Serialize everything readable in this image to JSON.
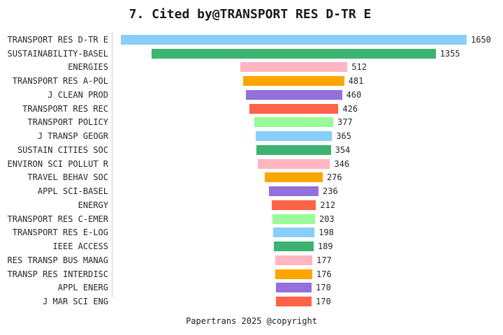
{
  "title": "7. Cited by@TRANSPORT RES D-TR E",
  "footer": "Papertrans 2025 @copyright",
  "colors": {
    "background": "#ffffff",
    "axis_line": "#cccccc",
    "text": "#262626",
    "title_text": "#1a1a1a",
    "palette": [
      "#87CEFA",
      "#3CB371",
      "#FFB6C1",
      "#FFA500",
      "#9370DB",
      "#FF6347",
      "#98FB98"
    ]
  },
  "chart_data": {
    "type": "bar",
    "orientation": "horizontal",
    "style": "centered-funnel",
    "title": "7. Cited by@TRANSPORT RES D-TR E",
    "xlabel": "",
    "ylabel": "",
    "legend": "none",
    "grid": false,
    "value_labels": "right-of-bar",
    "max_value": 1650,
    "categories": [
      "TRANSPORT RES D-TR E",
      "SUSTAINABILITY-BASEL",
      "ENERGIES",
      "TRANSPORT RES A-POL",
      "J CLEAN PROD",
      "TRANSPORT RES REC",
      "TRANSPORT POLICY",
      "J TRANSP GEOGR",
      "SUSTAIN CITIES SOC",
      "ENVIRON SCI POLLUT R",
      "TRAVEL BEHAV SOC",
      "APPL SCI-BASEL",
      "ENERGY",
      "TRANSPORT RES C-EMER",
      "TRANSPORT RES E-LOG",
      "IEEE ACCESS",
      "RES TRANSP BUS MANAG",
      "TRANSP RES INTERDISC",
      "APPL ENERG",
      "J MAR SCI ENG"
    ],
    "values": [
      1650,
      1355,
      512,
      481,
      460,
      426,
      377,
      365,
      354,
      346,
      276,
      236,
      212,
      203,
      198,
      189,
      177,
      176,
      170,
      170
    ],
    "bar_colors": [
      "#87CEFA",
      "#3CB371",
      "#FFB6C1",
      "#FFA500",
      "#9370DB",
      "#FF6347",
      "#98FB98",
      "#87CEFA",
      "#3CB371",
      "#FFB6C1",
      "#FFA500",
      "#9370DB",
      "#FF6347",
      "#98FB98",
      "#87CEFA",
      "#3CB371",
      "#FFB6C1",
      "#FFA500",
      "#9370DB",
      "#FF6347"
    ]
  }
}
